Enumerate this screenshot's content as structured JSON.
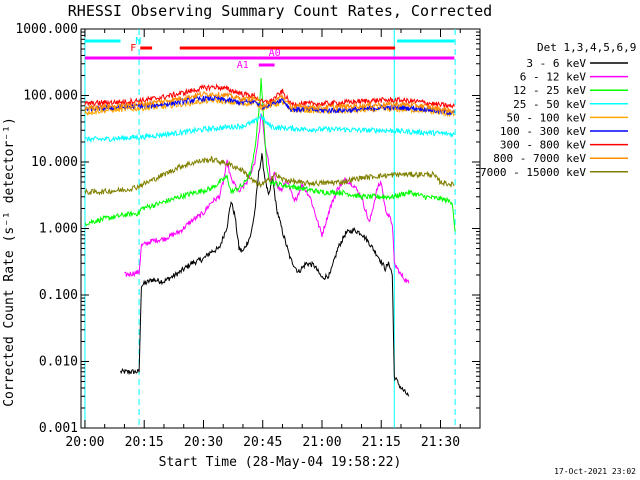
{
  "chart_data": {
    "type": "line",
    "title": "RHESSI Observing Summary Count Rates, Corrected",
    "xlabel": "Start Time (28-May-04 19:58:22)",
    "ylabel": "Corrected Count Rate (s⁻¹ detector⁻¹)",
    "y_scale": "log",
    "ylim": [
      0.001,
      1000
    ],
    "xlim_minutes": [
      -1,
      100
    ],
    "x_ticks": [
      {
        "value": 0,
        "label": "20:00"
      },
      {
        "value": 15,
        "label": "20:15"
      },
      {
        "value": 30,
        "label": "20:30"
      },
      {
        "value": 45,
        "label": "20:45"
      },
      {
        "value": 60,
        "label": "21:00"
      },
      {
        "value": 75,
        "label": "21:15"
      },
      {
        "value": 90,
        "label": "21:30"
      }
    ],
    "y_ticks": [
      {
        "value": 0.001,
        "label": "0.001"
      },
      {
        "value": 0.01,
        "label": "0.010"
      },
      {
        "value": 0.1,
        "label": "0.100"
      },
      {
        "value": 1,
        "label": "1.000"
      },
      {
        "value": 10,
        "label": "10.000"
      },
      {
        "value": 100,
        "label": "100.000"
      },
      {
        "value": 1000,
        "label": "1000.000"
      }
    ],
    "legend_title": "Det 1,3,4,5,6,9",
    "legend_position": "right",
    "series": [
      {
        "name": "3 - 6 keV",
        "color": "#000000",
        "points": [
          [
            9,
            0.007
          ],
          [
            13.7,
            0.007
          ],
          [
            14.3,
            0.14
          ],
          [
            17,
            0.17
          ],
          [
            20,
            0.16
          ],
          [
            24,
            0.22
          ],
          [
            27,
            0.3
          ],
          [
            30,
            0.35
          ],
          [
            32,
            0.45
          ],
          [
            34,
            0.5
          ],
          [
            36,
            1.1
          ],
          [
            37,
            2.6
          ],
          [
            38,
            1.5
          ],
          [
            39,
            0.5
          ],
          [
            40,
            0.45
          ],
          [
            42,
            0.8
          ],
          [
            43,
            1.8
          ],
          [
            44,
            7.0
          ],
          [
            44.8,
            12.5
          ],
          [
            45.5,
            6.0
          ],
          [
            46.5,
            3.0
          ],
          [
            47.5,
            5.8
          ],
          [
            48.5,
            2.0
          ],
          [
            50,
            0.9
          ],
          [
            52,
            0.35
          ],
          [
            54,
            0.22
          ],
          [
            56,
            0.3
          ],
          [
            58,
            0.28
          ],
          [
            60,
            0.18
          ],
          [
            62,
            0.2
          ],
          [
            64,
            0.5
          ],
          [
            66,
            0.85
          ],
          [
            68,
            0.95
          ],
          [
            70,
            0.85
          ],
          [
            72,
            0.6
          ],
          [
            74,
            0.4
          ],
          [
            76,
            0.25
          ],
          [
            77,
            0.3
          ],
          [
            77.8,
            0.2
          ],
          [
            78.3,
            0.006
          ],
          [
            80,
            0.004
          ],
          [
            82,
            0.003
          ]
        ]
      },
      {
        "name": "6 - 12 keV",
        "color": "#ff00ff",
        "points": [
          [
            10,
            0.2
          ],
          [
            13.7,
            0.22
          ],
          [
            14.3,
            0.55
          ],
          [
            17,
            0.65
          ],
          [
            20,
            0.7
          ],
          [
            24,
            0.9
          ],
          [
            27,
            1.3
          ],
          [
            30,
            1.7
          ],
          [
            32,
            2.5
          ],
          [
            34,
            3.0
          ],
          [
            35,
            5.0
          ],
          [
            36,
            10.0
          ],
          [
            37,
            5.5
          ],
          [
            38,
            4.5
          ],
          [
            39,
            3.5
          ],
          [
            41,
            5.0
          ],
          [
            43,
            10.0
          ],
          [
            44,
            25
          ],
          [
            44.7,
            55
          ],
          [
            45.5,
            20
          ],
          [
            46.5,
            10
          ],
          [
            47,
            5.0
          ],
          [
            48,
            6.5
          ],
          [
            49,
            4.0
          ],
          [
            50,
            3.8
          ],
          [
            51,
            5.5
          ],
          [
            53,
            2.5
          ],
          [
            55,
            4.5
          ],
          [
            57,
            3.0
          ],
          [
            59,
            1.2
          ],
          [
            60,
            0.8
          ],
          [
            62,
            2.0
          ],
          [
            64,
            4.0
          ],
          [
            66,
            5.5
          ],
          [
            68,
            4.5
          ],
          [
            70,
            3.0
          ],
          [
            72,
            1.2
          ],
          [
            74,
            4.0
          ],
          [
            75,
            5.0
          ],
          [
            76,
            2.0
          ],
          [
            77,
            1.5
          ],
          [
            77.8,
            1.2
          ],
          [
            78.3,
            0.3
          ],
          [
            80,
            0.2
          ],
          [
            82,
            0.15
          ]
        ]
      },
      {
        "name": "12 - 25 keV",
        "color": "#00ff00",
        "points": [
          [
            0,
            1.2
          ],
          [
            5,
            1.4
          ],
          [
            10,
            1.6
          ],
          [
            13.7,
            1.7
          ],
          [
            14.3,
            2.0
          ],
          [
            17,
            2.2
          ],
          [
            20,
            2.5
          ],
          [
            24,
            3.0
          ],
          [
            28,
            3.5
          ],
          [
            32,
            4.0
          ],
          [
            36,
            6.0
          ],
          [
            37,
            3.5
          ],
          [
            40,
            4.5
          ],
          [
            42,
            7.0
          ],
          [
            43,
            15
          ],
          [
            44,
            60
          ],
          [
            44.6,
            170
          ],
          [
            45.3,
            40
          ],
          [
            46,
            8.0
          ],
          [
            47,
            5.0
          ],
          [
            50,
            4.5
          ],
          [
            55,
            4.0
          ],
          [
            60,
            3.5
          ],
          [
            65,
            3.5
          ],
          [
            70,
            3.0
          ],
          [
            75,
            3.0
          ],
          [
            78,
            3.0
          ],
          [
            82,
            3.5
          ],
          [
            86,
            3.0
          ],
          [
            90,
            2.8
          ],
          [
            93,
            2.5
          ],
          [
            93.7,
            0.9
          ]
        ]
      },
      {
        "name": "25 - 50 keV",
        "color": "#00ffff",
        "points": [
          [
            0,
            22
          ],
          [
            5,
            22
          ],
          [
            10,
            23
          ],
          [
            15,
            24
          ],
          [
            20,
            26
          ],
          [
            25,
            28
          ],
          [
            30,
            31
          ],
          [
            35,
            33
          ],
          [
            40,
            35
          ],
          [
            43,
            40
          ],
          [
            44.5,
            50
          ],
          [
            46,
            38
          ],
          [
            48,
            33
          ],
          [
            52,
            32
          ],
          [
            56,
            31
          ],
          [
            60,
            31
          ],
          [
            65,
            31
          ],
          [
            70,
            30
          ],
          [
            75,
            30
          ],
          [
            80,
            29
          ],
          [
            85,
            28
          ],
          [
            90,
            27
          ],
          [
            93.5,
            26
          ]
        ]
      },
      {
        "name": "50 - 100 keV",
        "color": "#ffa500",
        "points": [
          [
            0,
            55
          ],
          [
            5,
            60
          ],
          [
            10,
            62
          ],
          [
            15,
            65
          ],
          [
            20,
            68
          ],
          [
            25,
            75
          ],
          [
            30,
            82
          ],
          [
            33,
            85
          ],
          [
            36,
            80
          ],
          [
            40,
            75
          ],
          [
            43,
            78
          ],
          [
            45,
            65
          ],
          [
            47,
            70
          ],
          [
            50,
            80
          ],
          [
            52,
            60
          ],
          [
            56,
            60
          ],
          [
            60,
            58
          ],
          [
            65,
            58
          ],
          [
            70,
            60
          ],
          [
            75,
            62
          ],
          [
            80,
            62
          ],
          [
            85,
            60
          ],
          [
            90,
            55
          ],
          [
            93.5,
            52
          ]
        ]
      },
      {
        "name": "100 - 300 keV",
        "color": "#0000ff",
        "points": [
          [
            0,
            62
          ],
          [
            5,
            65
          ],
          [
            10,
            68
          ],
          [
            15,
            70
          ],
          [
            20,
            74
          ],
          [
            25,
            82
          ],
          [
            30,
            90
          ],
          [
            33,
            90
          ],
          [
            36,
            85
          ],
          [
            40,
            78
          ],
          [
            43,
            82
          ],
          [
            45,
            68
          ],
          [
            47,
            75
          ],
          [
            50,
            88
          ],
          [
            52,
            62
          ],
          [
            56,
            62
          ],
          [
            60,
            60
          ],
          [
            65,
            60
          ],
          [
            70,
            62
          ],
          [
            75,
            66
          ],
          [
            80,
            66
          ],
          [
            85,
            64
          ],
          [
            90,
            58
          ],
          [
            93.5,
            55
          ]
        ]
      },
      {
        "name": "300 - 800 keV",
        "color": "#ff0000",
        "points": [
          [
            0,
            75
          ],
          [
            5,
            78
          ],
          [
            10,
            80
          ],
          [
            15,
            85
          ],
          [
            20,
            95
          ],
          [
            25,
            110
          ],
          [
            30,
            130
          ],
          [
            33,
            135
          ],
          [
            36,
            125
          ],
          [
            40,
            105
          ],
          [
            43,
            98
          ],
          [
            45,
            78
          ],
          [
            47,
            82
          ],
          [
            50,
            115
          ],
          [
            52,
            75
          ],
          [
            56,
            75
          ],
          [
            60,
            75
          ],
          [
            65,
            78
          ],
          [
            70,
            82
          ],
          [
            75,
            85
          ],
          [
            80,
            85
          ],
          [
            85,
            80
          ],
          [
            90,
            72
          ],
          [
            93.5,
            68
          ]
        ]
      },
      {
        "name": "800 - 7000 keV",
        "color": "#ff8c00",
        "points": [
          [
            0,
            65
          ],
          [
            5,
            68
          ],
          [
            10,
            70
          ],
          [
            15,
            75
          ],
          [
            20,
            82
          ],
          [
            25,
            92
          ],
          [
            30,
            105
          ],
          [
            33,
            105
          ],
          [
            36,
            100
          ],
          [
            40,
            88
          ],
          [
            43,
            90
          ],
          [
            45,
            72
          ],
          [
            47,
            76
          ],
          [
            50,
            98
          ],
          [
            52,
            68
          ],
          [
            56,
            68
          ],
          [
            60,
            66
          ],
          [
            65,
            68
          ],
          [
            70,
            70
          ],
          [
            75,
            73
          ],
          [
            80,
            73
          ],
          [
            85,
            70
          ],
          [
            90,
            62
          ],
          [
            93.5,
            58
          ]
        ]
      },
      {
        "name": "7000 - 15000 keV",
        "color": "#808000",
        "points": [
          [
            0,
            3.5
          ],
          [
            5,
            3.6
          ],
          [
            10,
            3.8
          ],
          [
            13,
            4.2
          ],
          [
            16,
            5.0
          ],
          [
            20,
            6.5
          ],
          [
            24,
            8.5
          ],
          [
            28,
            10
          ],
          [
            32,
            11
          ],
          [
            36,
            9.5
          ],
          [
            40,
            7.5
          ],
          [
            42,
            5.5
          ],
          [
            44,
            4.5
          ],
          [
            46,
            5.0
          ],
          [
            48,
            6.5
          ],
          [
            50,
            5.5
          ],
          [
            55,
            4.8
          ],
          [
            60,
            4.8
          ],
          [
            65,
            5.0
          ],
          [
            70,
            5.8
          ],
          [
            75,
            6.2
          ],
          [
            80,
            6.5
          ],
          [
            85,
            6.5
          ],
          [
            88,
            6.5
          ],
          [
            90,
            5.0
          ],
          [
            93.5,
            4.5
          ]
        ]
      }
    ],
    "flags": [
      {
        "label": "",
        "color": "#00ffff",
        "x1": 0,
        "x2": 9,
        "level": 0
      },
      {
        "label": "",
        "color": "#00ffff",
        "x1": 79,
        "x2": 93.5,
        "level": 0
      },
      {
        "label": "N",
        "color": "#00ffff",
        "x1": 14,
        "x2": 14,
        "level": 0
      },
      {
        "label": "F",
        "color": "#ff0000",
        "x1": 14,
        "x2": 17,
        "level": 1
      },
      {
        "label": "",
        "color": "#ff0000",
        "x1": 24,
        "x2": 78.5,
        "level": 1
      },
      {
        "label": "A0",
        "color": "#ff00ff",
        "x1": 0,
        "x2": 93.5,
        "level": 2
      },
      {
        "label": "A1",
        "color": "#ff00ff",
        "x1": 44,
        "x2": 48,
        "level": 3
      }
    ],
    "vertical_lines": [
      {
        "x": 0,
        "style": "solid",
        "color": "#00ffff"
      },
      {
        "x": 13.7,
        "style": "dashed",
        "color": "#00ffff"
      },
      {
        "x": 78.3,
        "style": "solid",
        "color": "#00ffff"
      },
      {
        "x": 93.7,
        "style": "dashed",
        "color": "#00ffff"
      }
    ],
    "grid": false
  },
  "footer": {
    "timestamp": "17-Oct-2021 23:02"
  }
}
